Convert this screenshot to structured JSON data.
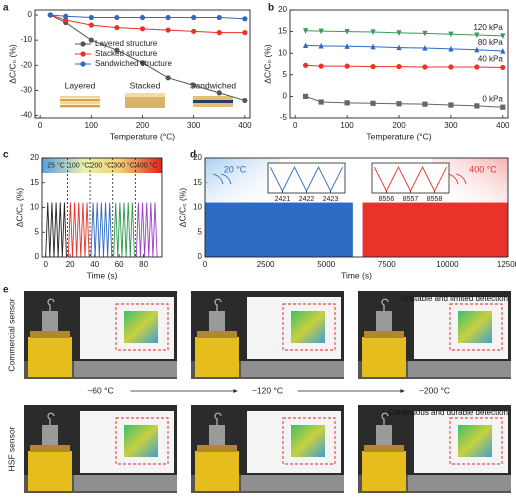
{
  "chart_data": [
    {
      "type": "line",
      "panel": "a",
      "x_label": "Temperature (°C)",
      "y_label": "ΔC/C₀ (%)",
      "x": [
        20,
        50,
        100,
        150,
        200,
        250,
        300,
        350,
        400
      ],
      "xlim": [
        -10,
        410
      ],
      "xticks": [
        0,
        100,
        200,
        300,
        400
      ],
      "ylim": [
        -41,
        2
      ],
      "yticks": [
        0,
        -10,
        -20,
        -30,
        -40
      ],
      "legend": "center",
      "series": [
        {
          "name": "Layered structure",
          "color": "#555555",
          "marker": "circle",
          "values": [
            0,
            -3,
            -10,
            -14,
            -19,
            -25,
            -28,
            -31,
            -34
          ]
        },
        {
          "name": "Stacked structure",
          "color": "#e8332a",
          "marker": "circle",
          "values": [
            0,
            -2,
            -4,
            -5,
            -5.5,
            -6,
            -6.5,
            -7,
            -7
          ]
        },
        {
          "name": "Sandwiched  structure",
          "color": "#2e6bc4",
          "marker": "circle",
          "values": [
            0,
            -0.5,
            -1,
            -1,
            -1,
            -1,
            -1,
            -1,
            -1.5
          ]
        }
      ],
      "inset_labels": [
        "Layered",
        "Stacked",
        "Sandwiched"
      ]
    },
    {
      "type": "line",
      "panel": "b",
      "x_label": "Temperature (°C)",
      "y_label": "ΔC/C₀ (%)",
      "x": [
        20,
        50,
        100,
        150,
        200,
        250,
        300,
        350,
        400
      ],
      "xlim": [
        -10,
        410
      ],
      "xticks": [
        0,
        100,
        200,
        300,
        400
      ],
      "ylim": [
        -5,
        20
      ],
      "yticks": [
        -5,
        0,
        5,
        10,
        15,
        20
      ],
      "series": [
        {
          "name": "0 kPa",
          "color": "#666666",
          "marker": "square",
          "values": [
            0,
            -1.3,
            -1.5,
            -1.6,
            -1.7,
            -1.8,
            -2,
            -2.2,
            -2.5
          ]
        },
        {
          "name": "40 kPa",
          "color": "#e8332a",
          "marker": "circle",
          "values": [
            7.2,
            7,
            7,
            6.9,
            6.9,
            6.8,
            6.8,
            6.8,
            6.7
          ]
        },
        {
          "name": "80 kPa",
          "color": "#2e6bc4",
          "marker": "triangle-up",
          "values": [
            11.8,
            11.7,
            11.6,
            11.5,
            11.3,
            11.2,
            11,
            10.8,
            10.5
          ]
        },
        {
          "name": "120 kPa",
          "color": "#3a9a5a",
          "marker": "triangle-down",
          "values": [
            15.2,
            15.1,
            15,
            14.9,
            14.7,
            14.6,
            14.4,
            14.2,
            14
          ]
        }
      ]
    },
    {
      "type": "wave",
      "panel": "c",
      "x_label": "Time (s)",
      "y_label": "ΔC/C₀ (%)",
      "xlim": [
        -3,
        95
      ],
      "xticks": [
        0,
        20,
        40,
        60,
        80
      ],
      "ylim": [
        0,
        20
      ],
      "yticks": [
        0,
        5,
        10,
        15,
        20
      ],
      "series": [
        {
          "name": "25 °C",
          "color": "#222222",
          "x": [
            0,
            1.7,
            3.4,
            5.1,
            6.8,
            8.5,
            10.2,
            11.9,
            13.6,
            15.3,
            17
          ],
          "values": [
            0,
            11,
            0,
            11,
            0,
            11,
            0,
            11,
            0,
            11,
            0
          ]
        },
        {
          "name": "100 °C",
          "color": "#e8332a",
          "x": [
            18.5,
            20.2,
            21.9,
            23.6,
            25.3,
            27,
            28.7,
            30.4,
            32.1,
            33.8,
            35.5
          ],
          "values": [
            0,
            11,
            0,
            11,
            0,
            11,
            0,
            11,
            0,
            11,
            0
          ]
        },
        {
          "name": "200 °C",
          "color": "#2e6bc4",
          "x": [
            37,
            38.7,
            40.4,
            42.1,
            43.8,
            45.5,
            47.2,
            48.9,
            50.6,
            52.3,
            54
          ],
          "values": [
            0,
            11,
            0,
            11,
            0,
            11,
            0,
            11,
            0,
            11,
            0
          ]
        },
        {
          "name": "300 °C",
          "color": "#2f9a4a",
          "x": [
            55.5,
            57.2,
            58.9,
            60.6,
            62.3,
            64,
            65.7,
            67.4,
            69.1,
            70.8,
            72.5
          ],
          "values": [
            0,
            11,
            0,
            11,
            0,
            11,
            0,
            11,
            0,
            11,
            0
          ]
        },
        {
          "name": "400 °C",
          "color": "#9a3fc8",
          "x": [
            74,
            75.7,
            77.4,
            79.1,
            80.8,
            82.5,
            84.2,
            85.9,
            87.6,
            89.3,
            91
          ],
          "values": [
            0,
            11,
            0,
            11,
            0,
            11,
            0,
            11,
            0,
            11,
            0
          ]
        }
      ]
    },
    {
      "type": "band",
      "panel": "d",
      "x_label": "Time (s)",
      "y_label": "ΔC/C₀ (%)",
      "xlim": [
        0,
        12500
      ],
      "xticks": [
        0,
        2500,
        5000,
        7500,
        10000,
        12500
      ],
      "ylim": [
        0,
        20
      ],
      "yticks": [
        0,
        5,
        10,
        15,
        20
      ],
      "series": [
        {
          "name": "20 °C",
          "color": "#2e6bc4",
          "x": [
            0,
            6100
          ],
          "values": [
            0,
            11
          ],
          "inset": {
            "x": [
              2420.5,
              2421,
              2421.5,
              2422,
              2422.5,
              2423,
              2423.5
            ],
            "values": [
              11,
              0,
              11,
              0,
              11,
              0,
              11
            ],
            "xlim": [
              2420.4,
              2423.6
            ],
            "ylim": [
              0,
              12
            ],
            "xticks": [
              2421,
              2422,
              2423
            ]
          }
        },
        {
          "name": "400 °C",
          "color": "#e8332a",
          "x": [
            6500,
            12500
          ],
          "values": [
            0,
            11
          ],
          "inset": {
            "x": [
              8555.5,
              8556,
              8556.5,
              8557,
              8557.5,
              8558,
              8558.5
            ],
            "values": [
              11,
              0,
              11,
              0,
              11,
              0,
              11
            ],
            "xlim": [
              8555.4,
              8558.6
            ],
            "ylim": [
              0,
              12
            ],
            "xticks": [
              8556,
              8557,
              8558
            ]
          }
        }
      ]
    }
  ],
  "photos": {
    "panel": "e",
    "row_labels": [
      "Commercial sensor",
      "HSF sensor"
    ],
    "temperatures": [
      "~60 °C",
      "~120 °C",
      "~200 °C"
    ],
    "captions": [
      "Unstable and limited detection",
      "Continuous and durable detection"
    ]
  }
}
